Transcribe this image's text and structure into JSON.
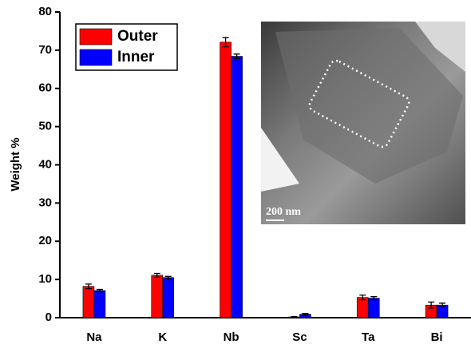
{
  "chart_data": {
    "type": "bar",
    "ylabel": "Weight %",
    "categories": [
      "Na",
      "K",
      "Nb",
      "Sc",
      "Ta",
      "Bi"
    ],
    "series": [
      {
        "name": "Outer",
        "color": "#ff0000",
        "values": [
          8.2,
          11.1,
          72.1,
          0.2,
          5.3,
          3.3
        ],
        "errors": [
          0.6,
          0.5,
          1.2,
          0.1,
          0.6,
          0.8
        ]
      },
      {
        "name": "Inner",
        "color": "#0000ff",
        "values": [
          7.1,
          10.5,
          68.4,
          0.9,
          5.1,
          3.3
        ],
        "errors": [
          0.3,
          0.3,
          0.6,
          0.2,
          0.4,
          0.5
        ]
      }
    ],
    "ylim": [
      0,
      80
    ],
    "yticks": [
      0,
      10,
      20,
      30,
      40,
      50,
      60,
      70,
      80
    ],
    "legend": "upper left",
    "inset_label": "200 nm"
  }
}
